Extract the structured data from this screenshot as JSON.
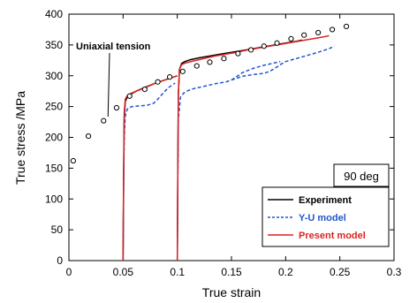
{
  "chart_data": {
    "type": "line",
    "title": "",
    "xlabel": "True strain",
    "ylabel": "True stress /MPa",
    "xlim": [
      0,
      0.3
    ],
    "ylim": [
      0,
      400
    ],
    "xticks": [
      0,
      0.05,
      0.1,
      0.15,
      0.2,
      0.25,
      0.3
    ],
    "xtick_labels": [
      "0",
      "0.05",
      "0.1",
      "0.15",
      "0.2",
      "0.25",
      "0.3"
    ],
    "yticks": [
      0,
      50,
      100,
      150,
      200,
      250,
      300,
      350,
      400
    ],
    "ytick_labels": [
      "0",
      "50",
      "100",
      "150",
      "200",
      "250",
      "300",
      "350",
      "400"
    ],
    "grid": false,
    "legend_position": "bottom-right",
    "condition_label": "90 deg",
    "annotation": {
      "text": "Uniaxial tension",
      "points_to": [
        0.032,
        228
      ]
    },
    "colors": {
      "experiment": "#000000",
      "yu_model": "#2255cc",
      "present_model": "#dd2222",
      "uniaxial": "#000000"
    },
    "series": [
      {
        "name": "Experiment",
        "style": "solid",
        "segments": [
          [
            [
              0.05,
              0
            ],
            [
              0.0505,
              120
            ],
            [
              0.051,
              230
            ],
            [
              0.052,
              258
            ],
            [
              0.054,
              266
            ],
            [
              0.057,
              270
            ],
            [
              0.062,
              275
            ],
            [
              0.07,
              281
            ],
            [
              0.08,
              288
            ],
            [
              0.09,
              294
            ],
            [
              0.1,
              300
            ]
          ],
          [
            [
              0.1,
              0
            ],
            [
              0.1005,
              150
            ],
            [
              0.101,
              270
            ],
            [
              0.102,
              310
            ],
            [
              0.104,
              320
            ],
            [
              0.107,
              323
            ],
            [
              0.112,
              326
            ],
            [
              0.12,
              329
            ],
            [
              0.13,
              332
            ],
            [
              0.14,
              335
            ],
            [
              0.15,
              338
            ],
            [
              0.16,
              341
            ],
            [
              0.17,
              344
            ],
            [
              0.18,
              347
            ],
            [
              0.19,
              350
            ],
            [
              0.2,
              353
            ],
            [
              0.21,
              356
            ],
            [
              0.215,
              358
            ]
          ]
        ]
      },
      {
        "name": "Y-U model",
        "style": "dashed",
        "segments": [
          [
            [
              0.05,
              0
            ],
            [
              0.0505,
              120
            ],
            [
              0.051,
              200
            ],
            [
              0.052,
              235
            ],
            [
              0.054,
              246
            ],
            [
              0.058,
              250
            ],
            [
              0.065,
              251
            ],
            [
              0.072,
              252
            ],
            [
              0.078,
              255
            ],
            [
              0.082,
              262
            ],
            [
              0.087,
              272
            ],
            [
              0.092,
              281
            ],
            [
              0.098,
              288
            ]
          ],
          [
            [
              0.1,
              0
            ],
            [
              0.1005,
              130
            ],
            [
              0.101,
              230
            ],
            [
              0.103,
              265
            ],
            [
              0.106,
              272
            ],
            [
              0.11,
              276
            ],
            [
              0.115,
              279
            ],
            [
              0.125,
              283
            ],
            [
              0.135,
              287
            ],
            [
              0.145,
              290
            ],
            [
              0.15,
              293
            ]
          ],
          [
            [
              0.15,
              293
            ],
            [
              0.16,
              299
            ],
            [
              0.17,
              302
            ],
            [
              0.18,
              304
            ],
            [
              0.185,
              307
            ],
            [
              0.19,
              312
            ],
            [
              0.195,
              318
            ],
            [
              0.2,
              323
            ],
            [
              0.21,
              328
            ],
            [
              0.22,
              333
            ],
            [
              0.23,
              338
            ],
            [
              0.24,
              344
            ],
            [
              0.245,
              348
            ]
          ],
          [
            [
              0.15,
              293
            ],
            [
              0.16,
              305
            ],
            [
              0.17,
              312
            ],
            [
              0.18,
              317
            ],
            [
              0.19,
              321
            ],
            [
              0.195,
              323
            ]
          ]
        ]
      },
      {
        "name": "Present model",
        "style": "solid",
        "segments": [
          [
            [
              0.05,
              0
            ],
            [
              0.0505,
              140
            ],
            [
              0.051,
              240
            ],
            [
              0.052,
              262
            ],
            [
              0.054,
              268
            ],
            [
              0.058,
              272
            ],
            [
              0.065,
              277
            ],
            [
              0.072,
              282
            ],
            [
              0.08,
              288
            ],
            [
              0.09,
              294
            ],
            [
              0.1,
              300
            ]
          ],
          [
            [
              0.1,
              0
            ],
            [
              0.1005,
              150
            ],
            [
              0.101,
              270
            ],
            [
              0.102,
              310
            ],
            [
              0.104,
              318
            ],
            [
              0.108,
              321
            ],
            [
              0.115,
              324
            ],
            [
              0.125,
              328
            ],
            [
              0.135,
              332
            ],
            [
              0.145,
              335
            ],
            [
              0.155,
              338
            ],
            [
              0.165,
              342
            ],
            [
              0.175,
              345
            ],
            [
              0.185,
              348
            ],
            [
              0.195,
              351
            ],
            [
              0.205,
              354
            ],
            [
              0.215,
              357
            ],
            [
              0.225,
              360
            ],
            [
              0.235,
              363
            ],
            [
              0.24,
              365
            ]
          ]
        ]
      },
      {
        "name": "Uniaxial tension",
        "style": "markers",
        "points": [
          [
            0.004,
            162
          ],
          [
            0.018,
            202
          ],
          [
            0.032,
            227
          ],
          [
            0.044,
            248
          ],
          [
            0.056,
            267
          ],
          [
            0.07,
            278
          ],
          [
            0.082,
            290
          ],
          [
            0.093,
            298
          ],
          [
            0.105,
            307
          ],
          [
            0.118,
            316
          ],
          [
            0.13,
            322
          ],
          [
            0.143,
            328
          ],
          [
            0.156,
            336
          ],
          [
            0.168,
            342
          ],
          [
            0.18,
            348
          ],
          [
            0.192,
            353
          ],
          [
            0.205,
            360
          ],
          [
            0.217,
            366
          ],
          [
            0.23,
            370
          ],
          [
            0.243,
            375
          ],
          [
            0.256,
            380
          ]
        ]
      }
    ]
  }
}
